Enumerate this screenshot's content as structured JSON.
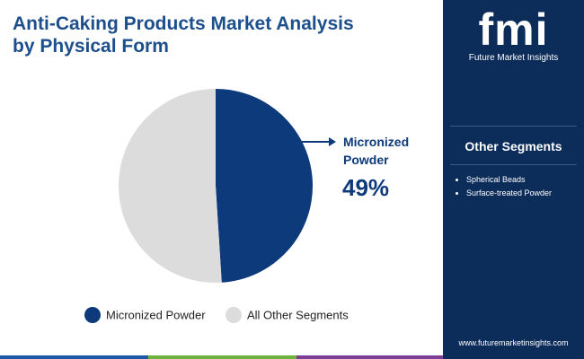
{
  "chart_data": {
    "type": "pie",
    "title": "Anti-Caking Products Market Analysis by Physical Form",
    "categories": [
      "Micronized Powder",
      "All Other Segments"
    ],
    "values": [
      49,
      51
    ],
    "value_labels": [
      "49%",
      null
    ],
    "colors": [
      "#0d3a7a",
      "#dcdcdc"
    ]
  },
  "brand": {
    "logo": "fmi",
    "name": "Future Market Insights",
    "website": "www.futuremarketinsights.com"
  },
  "sidebar": {
    "heading": "Other Segments",
    "items": [
      "Spherical Beads",
      "Surface-treated Powder"
    ]
  }
}
